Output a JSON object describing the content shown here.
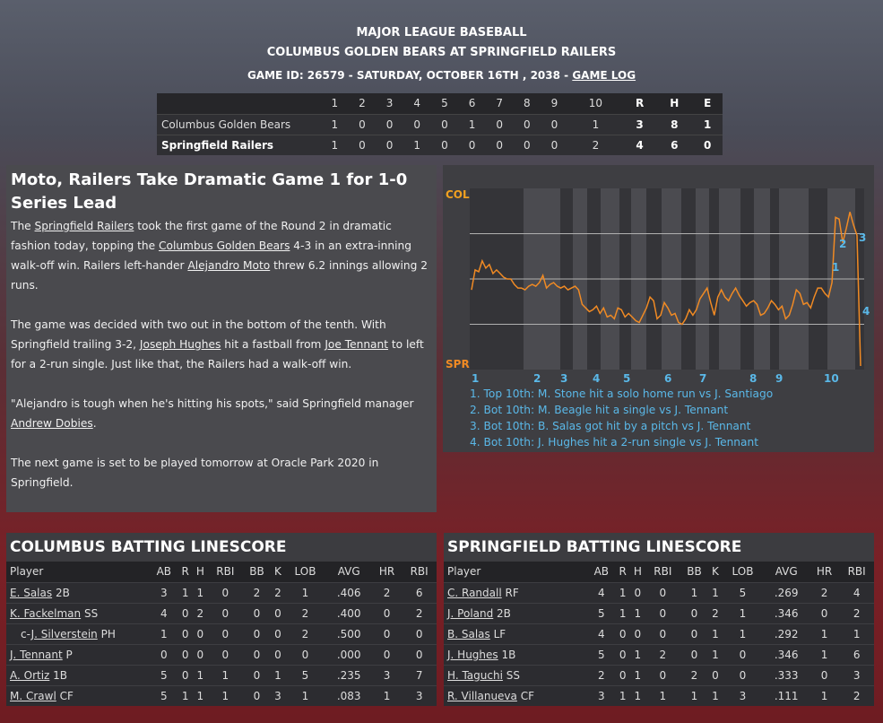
{
  "header": {
    "league": "MAJOR LEAGUE BASEBALL",
    "matchup": "COLUMBUS GOLDEN BEARS AT SPRINGFIELD RAILERS",
    "game_info": "GAME ID: 26579 - SATURDAY, OCTOBER 16TH , 2038 - ",
    "game_log": "GAME LOG"
  },
  "linescore": {
    "innings": [
      "1",
      "2",
      "3",
      "4",
      "5",
      "6",
      "7",
      "8",
      "9",
      "10"
    ],
    "totals_headers": [
      "R",
      "H",
      "E"
    ],
    "teams": [
      {
        "name": "Columbus Golden Bears",
        "innings": [
          "1",
          "0",
          "0",
          "0",
          "0",
          "1",
          "0",
          "0",
          "0",
          "1"
        ],
        "r": "3",
        "h": "8",
        "e": "1"
      },
      {
        "name": "Springfield Railers",
        "innings": [
          "1",
          "0",
          "0",
          "1",
          "0",
          "0",
          "0",
          "0",
          "0",
          "2"
        ],
        "r": "4",
        "h": "6",
        "e": "0"
      }
    ]
  },
  "article": {
    "headline": "Moto, Railers Take Dramatic Game 1 for 1-0 Series Lead",
    "p1": [
      "The ",
      "Springfield Railers",
      " took the first game of the Round 2 in dramatic fashion today, topping the ",
      "Columbus Golden Bears",
      " 4-3 in an extra-inning walk-off win. Railers left-hander ",
      "Alejandro Moto",
      " threw 6.2 innings allowing 2 runs."
    ],
    "p2": [
      "The game was decided with two out in the bottom of the tenth. With Springfield trailing 3-2, ",
      "Joseph Hughes",
      " hit a fastball from ",
      "Joe Tennant",
      " to left for a 2-run single. Just like that, the Railers had a walk-off win."
    ],
    "p3": [
      "\"Alejandro is tough when he's hitting his spots,\" said Springfield manager ",
      "Andrew Dobies",
      "."
    ],
    "p4": "The next game is set to be played tomorrow at Oracle Park 2020 in Springfield."
  },
  "chart_data": {
    "type": "line",
    "top_label": "COL",
    "bottom_label": "SPR",
    "inning_labels": [
      "1",
      "2",
      "3",
      "4",
      "5",
      "6",
      "7",
      "8",
      "9",
      "10"
    ],
    "ylim": [
      0,
      1
    ],
    "line_color": "#f08a24",
    "label_color": "#5ab8e8",
    "values": [
      0.44,
      0.55,
      0.54,
      0.6,
      0.56,
      0.58,
      0.53,
      0.55,
      0.53,
      0.51,
      0.5,
      0.5,
      0.47,
      0.45,
      0.45,
      0.44,
      0.46,
      0.47,
      0.46,
      0.48,
      0.52,
      0.45,
      0.47,
      0.48,
      0.46,
      0.45,
      0.46,
      0.44,
      0.45,
      0.46,
      0.44,
      0.36,
      0.34,
      0.32,
      0.33,
      0.35,
      0.31,
      0.34,
      0.29,
      0.3,
      0.28,
      0.34,
      0.33,
      0.29,
      0.31,
      0.29,
      0.27,
      0.26,
      0.3,
      0.34,
      0.4,
      0.38,
      0.28,
      0.3,
      0.37,
      0.34,
      0.3,
      0.31,
      0.26,
      0.25,
      0.28,
      0.33,
      0.3,
      0.33,
      0.39,
      0.42,
      0.45,
      0.37,
      0.3,
      0.4,
      0.44,
      0.4,
      0.38,
      0.42,
      0.45,
      0.41,
      0.38,
      0.35,
      0.37,
      0.38,
      0.36,
      0.3,
      0.31,
      0.34,
      0.38,
      0.36,
      0.33,
      0.35,
      0.28,
      0.3,
      0.36,
      0.44,
      0.42,
      0.36,
      0.37,
      0.34,
      0.4,
      0.45,
      0.45,
      0.42,
      0.4,
      0.48,
      0.84,
      0.83,
      0.7,
      0.78,
      0.87,
      0.8,
      0.74,
      0.02
    ],
    "events": [
      {
        "n": "1",
        "text": "1. Top 10th: M. Stone hit a solo home run vs J. Santiago"
      },
      {
        "n": "2",
        "text": "2. Bot 10th: M. Beagle hit a single vs J. Tennant"
      },
      {
        "n": "3",
        "text": "3. Bot 10th: B. Salas got hit by a pitch vs J. Tennant"
      },
      {
        "n": "4",
        "text": "4. Bot 10th: J. Hughes hit a 2-run single vs J. Tennant"
      }
    ]
  },
  "batting_headers": [
    "Player",
    "AB",
    "R",
    "H",
    "RBI",
    "BB",
    "K",
    "LOB",
    "AVG",
    "HR",
    "RBI"
  ],
  "columbus": {
    "title": "COLUMBUS BATTING LINESCORE",
    "rows": [
      {
        "prefix": "",
        "name": "E. Salas",
        "pos": " 2B",
        "stats": [
          "3",
          "1",
          "1",
          "0",
          "2",
          "2",
          "1",
          ".406",
          "2",
          "6"
        ]
      },
      {
        "prefix": "",
        "name": "K. Fackelman",
        "pos": " SS",
        "stats": [
          "4",
          "0",
          "2",
          "0",
          "0",
          "0",
          "2",
          ".400",
          "0",
          "2"
        ]
      },
      {
        "prefix": "c-",
        "name": "J. Silverstein",
        "pos": " PH",
        "stats": [
          "1",
          "0",
          "0",
          "0",
          "0",
          "0",
          "2",
          ".500",
          "0",
          "0"
        ]
      },
      {
        "prefix": "",
        "name": "J. Tennant",
        "pos": " P",
        "stats": [
          "0",
          "0",
          "0",
          "0",
          "0",
          "0",
          "0",
          ".000",
          "0",
          "0"
        ]
      },
      {
        "prefix": "",
        "name": "A. Ortiz",
        "pos": " 1B",
        "stats": [
          "5",
          "0",
          "1",
          "1",
          "0",
          "1",
          "5",
          ".235",
          "3",
          "7"
        ]
      },
      {
        "prefix": "",
        "name": "M. Crawl",
        "pos": " CF",
        "stats": [
          "5",
          "1",
          "1",
          "1",
          "0",
          "3",
          "1",
          ".083",
          "1",
          "3"
        ]
      }
    ]
  },
  "springfield": {
    "title": "SPRINGFIELD BATTING LINESCORE",
    "rows": [
      {
        "prefix": "",
        "name": "C. Randall",
        "pos": " RF",
        "stats": [
          "4",
          "1",
          "0",
          "0",
          "1",
          "1",
          "5",
          ".269",
          "2",
          "4"
        ]
      },
      {
        "prefix": "",
        "name": "J. Poland",
        "pos": " 2B",
        "stats": [
          "5",
          "1",
          "1",
          "0",
          "0",
          "2",
          "1",
          ".346",
          "0",
          "2"
        ]
      },
      {
        "prefix": "",
        "name": "B. Salas",
        "pos": " LF",
        "stats": [
          "4",
          "0",
          "0",
          "0",
          "0",
          "1",
          "1",
          ".292",
          "1",
          "1"
        ]
      },
      {
        "prefix": "",
        "name": "J. Hughes",
        "pos": " 1B",
        "stats": [
          "5",
          "0",
          "1",
          "2",
          "0",
          "1",
          "0",
          ".346",
          "1",
          "6"
        ]
      },
      {
        "prefix": "",
        "name": "H. Taguchi",
        "pos": " SS",
        "stats": [
          "2",
          "0",
          "1",
          "0",
          "2",
          "0",
          "0",
          ".333",
          "0",
          "3"
        ]
      },
      {
        "prefix": "",
        "name": "R. Villanueva",
        "pos": " CF",
        "stats": [
          "3",
          "1",
          "1",
          "1",
          "1",
          "1",
          "3",
          ".111",
          "1",
          "2"
        ]
      }
    ]
  }
}
